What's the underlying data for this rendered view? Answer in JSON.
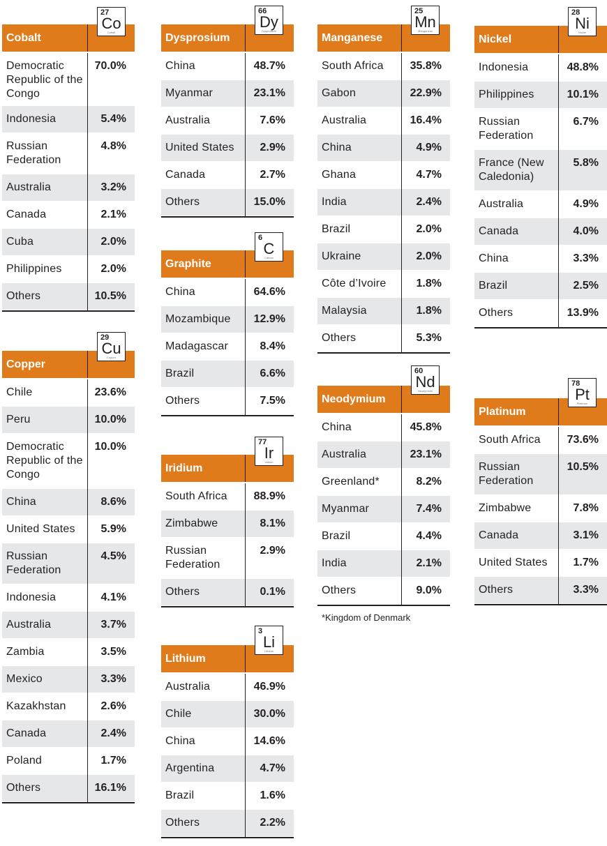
{
  "tables": [
    {
      "key": "cobalt",
      "title": "Cobalt",
      "number": "27",
      "symbol": "Co",
      "element": "Cobalt",
      "rows": [
        [
          "Democratic Republic of the Congo",
          "70.0%"
        ],
        [
          "Indonesia",
          "5.4%"
        ],
        [
          "Russian Federation",
          "4.8%"
        ],
        [
          "Australia",
          "3.2%"
        ],
        [
          "Canada",
          "2.1%"
        ],
        [
          "Cuba",
          "2.0%"
        ],
        [
          "Philippines",
          "2.0%"
        ],
        [
          "Others",
          "10.5%"
        ]
      ]
    },
    {
      "key": "copper",
      "title": "Copper",
      "number": "29",
      "symbol": "Cu",
      "element": "Copper",
      "rows": [
        [
          "Chile",
          "23.6%"
        ],
        [
          "Peru",
          "10.0%"
        ],
        [
          "Democratic Republic of the Congo",
          "10.0%"
        ],
        [
          "China",
          "8.6%"
        ],
        [
          "United States",
          "5.9%"
        ],
        [
          "Russian Federation",
          "4.5%"
        ],
        [
          "Indonesia",
          "4.1%"
        ],
        [
          "Australia",
          "3.7%"
        ],
        [
          "Zambia",
          "3.5%"
        ],
        [
          "Mexico",
          "3.3%"
        ],
        [
          "Kazakhstan",
          "2.6%"
        ],
        [
          "Canada",
          "2.4%"
        ],
        [
          "Poland",
          "1.7%"
        ],
        [
          "Others",
          "16.1%"
        ]
      ]
    },
    {
      "key": "dysprosium",
      "title": "Dysprosium",
      "number": "66",
      "symbol": "Dy",
      "element": "Dysprosium",
      "rows": [
        [
          "China",
          "48.7%"
        ],
        [
          "Myanmar",
          "23.1%"
        ],
        [
          "Australia",
          "7.6%"
        ],
        [
          "United States",
          "2.9%"
        ],
        [
          "Canada",
          "2.7%"
        ],
        [
          "Others",
          "15.0%"
        ]
      ]
    },
    {
      "key": "graphite",
      "title": "Graphite",
      "number": "6",
      "symbol": "C",
      "element": "Carbon",
      "rows": [
        [
          "China",
          "64.6%"
        ],
        [
          "Mozambique",
          "12.9%"
        ],
        [
          "Madagascar",
          "8.4%"
        ],
        [
          "Brazil",
          "6.6%"
        ],
        [
          "Others",
          "7.5%"
        ]
      ]
    },
    {
      "key": "iridium",
      "title": "Iridium",
      "number": "77",
      "symbol": "Ir",
      "element": "Iridium",
      "rows": [
        [
          "South Africa",
          "88.9%"
        ],
        [
          "Zimbabwe",
          "8.1%"
        ],
        [
          "Russian Federation",
          "2.9%"
        ],
        [
          "Others",
          "0.1%"
        ]
      ]
    },
    {
      "key": "lithium",
      "title": "Lithium",
      "number": "3",
      "symbol": "Li",
      "element": "Lithium",
      "rows": [
        [
          "Australia",
          "46.9%"
        ],
        [
          "Chile",
          "30.0%"
        ],
        [
          "China",
          "14.6%"
        ],
        [
          "Argentina",
          "4.7%"
        ],
        [
          "Brazil",
          "1.6%"
        ],
        [
          "Others",
          "2.2%"
        ]
      ]
    },
    {
      "key": "manganese",
      "title": "Manganese",
      "number": "25",
      "symbol": "Mn",
      "element": "Manganese",
      "rows": [
        [
          "South Africa",
          "35.8%"
        ],
        [
          "Gabon",
          "22.9%"
        ],
        [
          "Australia",
          "16.4%"
        ],
        [
          "China",
          "4.9%"
        ],
        [
          "Ghana",
          "4.7%"
        ],
        [
          "India",
          "2.4%"
        ],
        [
          "Brazil",
          "2.0%"
        ],
        [
          "Ukraine",
          "2.0%"
        ],
        [
          "Côte d’Ivoire",
          "1.8%"
        ],
        [
          "Malaysia",
          "1.8%"
        ],
        [
          "Others",
          "5.3%"
        ]
      ]
    },
    {
      "key": "neodymium",
      "title": "Neodymium",
      "number": "60",
      "symbol": "Nd",
      "element": "Neodymium",
      "rows": [
        [
          "China",
          "45.8%"
        ],
        [
          "Australia",
          "23.1%"
        ],
        [
          "Greenland*",
          "8.2%"
        ],
        [
          "Myanmar",
          "7.4%"
        ],
        [
          "Brazil",
          "4.4%"
        ],
        [
          "India",
          "2.1%"
        ],
        [
          "Others",
          "9.0%"
        ]
      ]
    },
    {
      "key": "nickel",
      "title": "Nickel",
      "number": "28",
      "symbol": "Ni",
      "element": "Nickel",
      "rows": [
        [
          "Indonesia",
          "48.8%"
        ],
        [
          "Philippines",
          "10.1%"
        ],
        [
          "Russian Federation",
          "6.7%"
        ],
        [
          "France (New Caledonia)",
          "5.8%"
        ],
        [
          "Australia",
          "4.9%"
        ],
        [
          "Canada",
          "4.0%"
        ],
        [
          "China",
          "3.3%"
        ],
        [
          "Brazil",
          "2.5%"
        ],
        [
          "Others",
          "13.9%"
        ]
      ]
    },
    {
      "key": "platinum",
      "title": "Platinum",
      "number": "78",
      "symbol": "Pt",
      "element": "Platinum",
      "rows": [
        [
          "South Africa",
          "73.6%"
        ],
        [
          "Russian Federation",
          "10.5%"
        ],
        [
          "Zimbabwe",
          "7.8%"
        ],
        [
          "Canada",
          "3.1%"
        ],
        [
          "United States",
          "1.7%"
        ],
        [
          "Others",
          "3.3%"
        ]
      ]
    }
  ],
  "footnote": "*Kingdom of Denmark",
  "colors": {
    "header": "#e07b1c",
    "stripe": "#e6e7e9",
    "rule": "#231f20"
  }
}
